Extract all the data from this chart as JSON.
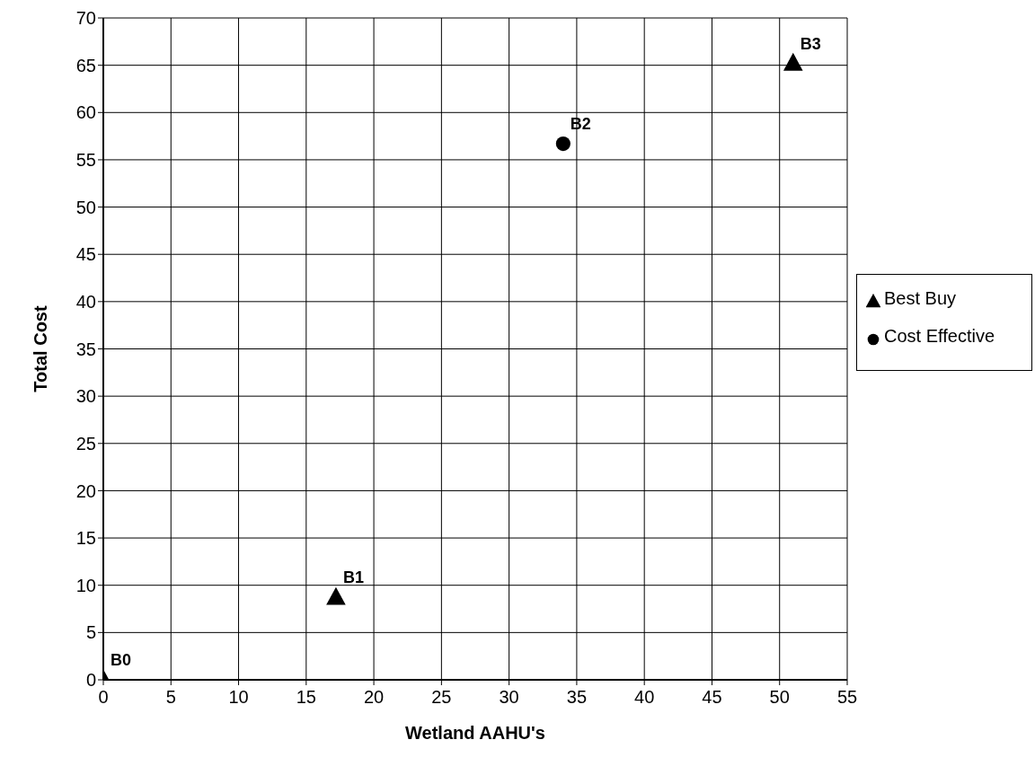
{
  "chart_data": {
    "type": "scatter",
    "xlabel": "Wetland AAHU's",
    "ylabel": "Total Cost",
    "xlim": [
      0,
      55
    ],
    "xticks": [
      0,
      5,
      10,
      15,
      20,
      25,
      30,
      35,
      40,
      45,
      50,
      55
    ],
    "ylim": [
      0,
      70
    ],
    "yticks": [
      0,
      5,
      10,
      15,
      20,
      25,
      30,
      35,
      40,
      45,
      50,
      55,
      60,
      65,
      70
    ],
    "grid": true,
    "legend": "right",
    "series": [
      {
        "name": "Best Buy",
        "color": "#000000",
        "marker": "triangle",
        "x": [
          0,
          17.2,
          51.0
        ],
        "values": [
          0,
          8.7,
          65.2
        ]
      },
      {
        "name": "Cost Effective",
        "color": "#000000",
        "marker": "circle",
        "x": [
          34.0
        ],
        "values": [
          56.7
        ]
      }
    ],
    "annotations": [
      {
        "text": "B0",
        "x": 0,
        "y": 0
      },
      {
        "text": "B1",
        "x": 17.2,
        "y": 8.7
      },
      {
        "text": "B2",
        "x": 34.0,
        "y": 56.7
      },
      {
        "text": "B3",
        "x": 51.0,
        "y": 65.2
      }
    ]
  }
}
